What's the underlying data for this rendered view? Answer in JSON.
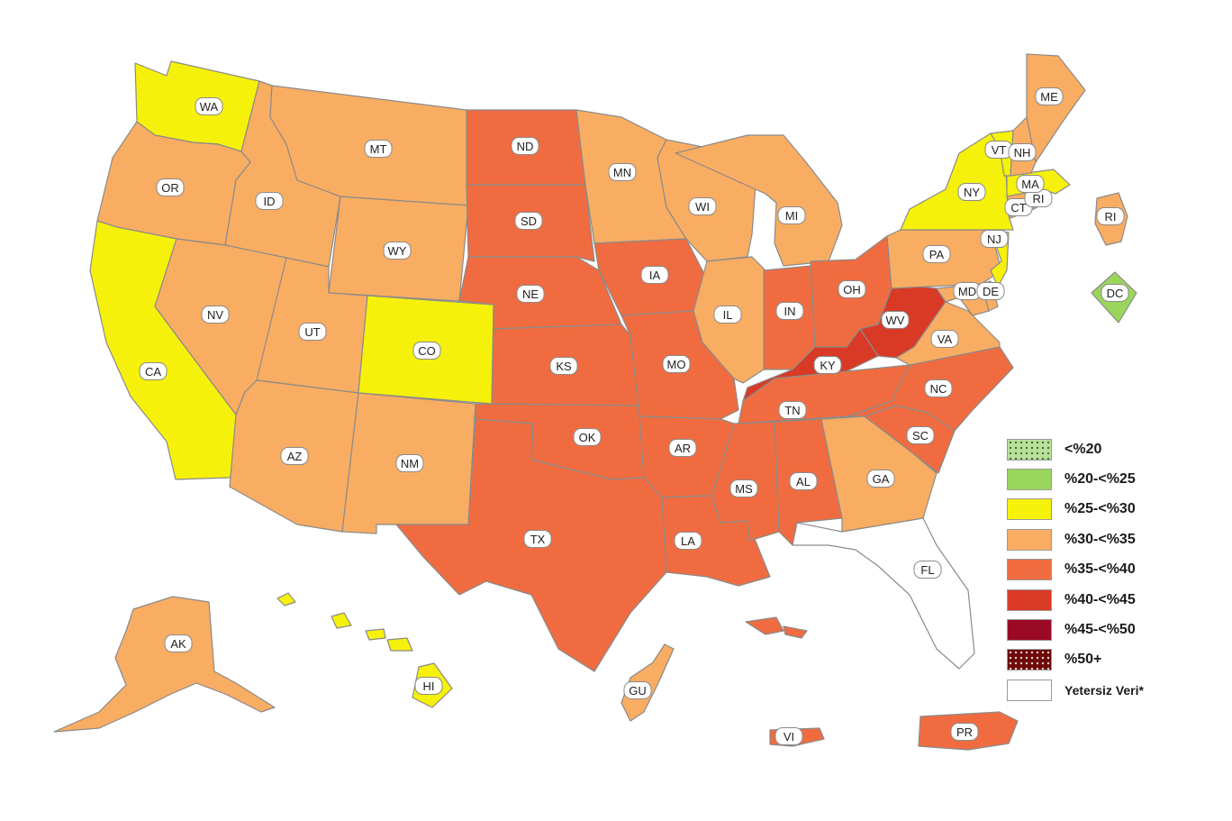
{
  "colors": {
    "c20": "#b8e29a",
    "c25": "#9ad65c",
    "c30": "#f6f10a",
    "c35": "#f9ad62",
    "c40": "#f06c40",
    "c45": "#d93a25",
    "c50": "#9b0a25",
    "c50plus": "#6e0a0a",
    "nodata": "#ffffff"
  },
  "legend": [
    {
      "label": "<%20",
      "color": "#b8e29a",
      "pattern": "dots"
    },
    {
      "label": "%20-<%25",
      "color": "#9ad65c",
      "pattern": "none"
    },
    {
      "label": "%25-<%30",
      "color": "#f6f10a",
      "pattern": "none"
    },
    {
      "label": "%30-<%35",
      "color": "#f9ad62",
      "pattern": "none"
    },
    {
      "label": "%35-<%40",
      "color": "#f06c40",
      "pattern": "none"
    },
    {
      "label": "%40-<%45",
      "color": "#d93a25",
      "pattern": "none"
    },
    {
      "label": "%45-<%50",
      "color": "#9b0a25",
      "pattern": "none"
    },
    {
      "label": "%50+",
      "color": "#6e0a0a",
      "pattern": "dots"
    },
    {
      "label": "Yetersiz Veri*",
      "color": "#ffffff",
      "pattern": "none"
    }
  ],
  "states": [
    {
      "abbr": "WA",
      "category": "c30"
    },
    {
      "abbr": "OR",
      "category": "c35"
    },
    {
      "abbr": "CA",
      "category": "c30"
    },
    {
      "abbr": "ID",
      "category": "c35"
    },
    {
      "abbr": "NV",
      "category": "c35"
    },
    {
      "abbr": "MT",
      "category": "c35"
    },
    {
      "abbr": "WY",
      "category": "c35"
    },
    {
      "abbr": "UT",
      "category": "c35"
    },
    {
      "abbr": "AZ",
      "category": "c35"
    },
    {
      "abbr": "CO",
      "category": "c30"
    },
    {
      "abbr": "NM",
      "category": "c35"
    },
    {
      "abbr": "ND",
      "category": "c40"
    },
    {
      "abbr": "SD",
      "category": "c40"
    },
    {
      "abbr": "NE",
      "category": "c40"
    },
    {
      "abbr": "KS",
      "category": "c40"
    },
    {
      "abbr": "OK",
      "category": "c40"
    },
    {
      "abbr": "TX",
      "category": "c40"
    },
    {
      "abbr": "MN",
      "category": "c35"
    },
    {
      "abbr": "IA",
      "category": "c40"
    },
    {
      "abbr": "MO",
      "category": "c40"
    },
    {
      "abbr": "AR",
      "category": "c40"
    },
    {
      "abbr": "LA",
      "category": "c40"
    },
    {
      "abbr": "WI",
      "category": "c35"
    },
    {
      "abbr": "IL",
      "category": "c35"
    },
    {
      "abbr": "MI",
      "category": "c35"
    },
    {
      "abbr": "IN",
      "category": "c40"
    },
    {
      "abbr": "OH",
      "category": "c40"
    },
    {
      "abbr": "KY",
      "category": "c45"
    },
    {
      "abbr": "WV",
      "category": "c45"
    },
    {
      "abbr": "TN",
      "category": "c40"
    },
    {
      "abbr": "MS",
      "category": "c40"
    },
    {
      "abbr": "AL",
      "category": "c40"
    },
    {
      "abbr": "GA",
      "category": "c35"
    },
    {
      "abbr": "FL",
      "category": "nodata"
    },
    {
      "abbr": "SC",
      "category": "c40"
    },
    {
      "abbr": "NC",
      "category": "c40"
    },
    {
      "abbr": "VA",
      "category": "c35"
    },
    {
      "abbr": "PA",
      "category": "c35"
    },
    {
      "abbr": "NY",
      "category": "c30"
    },
    {
      "abbr": "NJ",
      "category": "c30"
    },
    {
      "abbr": "MD",
      "category": "c35"
    },
    {
      "abbr": "DE",
      "category": "c35"
    },
    {
      "abbr": "CT",
      "category": "c35"
    },
    {
      "abbr": "RI",
      "category": "c35"
    },
    {
      "abbr": "MA",
      "category": "c30"
    },
    {
      "abbr": "VT",
      "category": "c30"
    },
    {
      "abbr": "NH",
      "category": "c35"
    },
    {
      "abbr": "ME",
      "category": "c35"
    },
    {
      "abbr": "DC",
      "category": "c25"
    },
    {
      "abbr": "AK",
      "category": "c35"
    },
    {
      "abbr": "HI",
      "category": "c30"
    },
    {
      "abbr": "GU",
      "category": "c35"
    },
    {
      "abbr": "PR",
      "category": "c40"
    },
    {
      "abbr": "VI",
      "category": "c40"
    }
  ],
  "inset_labels": [
    {
      "abbr": "RI",
      "category": "c35"
    }
  ]
}
